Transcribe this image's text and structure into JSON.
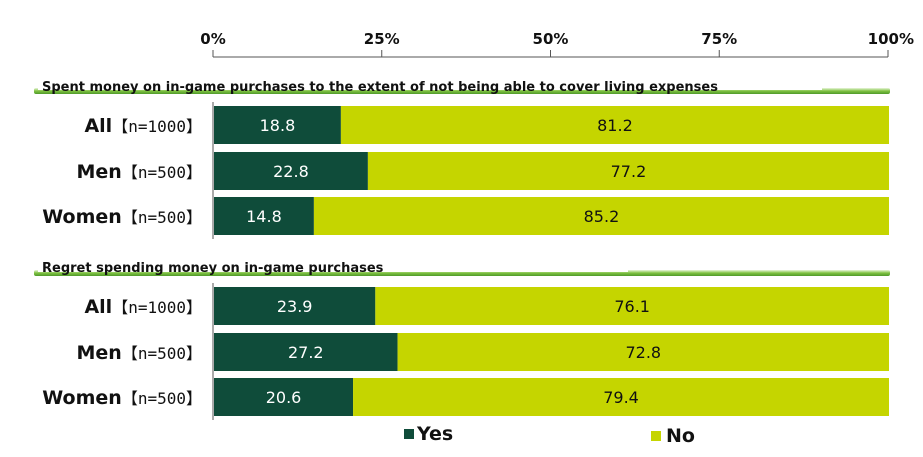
{
  "colors": {
    "yes": "#0f4c3a",
    "no": "#c5d500",
    "section_band": "#7fc241",
    "axis": "#555555"
  },
  "chart_data": {
    "type": "bar",
    "orientation": "horizontal",
    "stacked": true,
    "x_ticks": [
      "0%",
      "25%",
      "50%",
      "75%",
      "100%"
    ],
    "xlim": [
      0,
      100
    ],
    "legend": {
      "placement": "bottom",
      "entries": [
        "Yes",
        "No"
      ]
    },
    "sections": [
      {
        "title": "Spent money on in-game purchases to the extent of not being able to cover living expenses",
        "rows": [
          {
            "label": "All",
            "n": "【n=1000】",
            "yes": 18.8,
            "no": 81.2
          },
          {
            "label": "Men",
            "n": "【n=500】",
            "yes": 22.8,
            "no": 77.2
          },
          {
            "label": "Women",
            "n": "【n=500】",
            "yes": 14.8,
            "no": 85.2
          }
        ]
      },
      {
        "title": "Regret spending money on in-game purchases",
        "rows": [
          {
            "label": "All",
            "n": "【n=1000】",
            "yes": 23.9,
            "no": 76.1
          },
          {
            "label": "Men",
            "n": "【n=500】",
            "yes": 27.2,
            "no": 72.8
          },
          {
            "label": "Women",
            "n": "【n=500】",
            "yes": 20.6,
            "no": 79.4
          }
        ]
      }
    ]
  }
}
